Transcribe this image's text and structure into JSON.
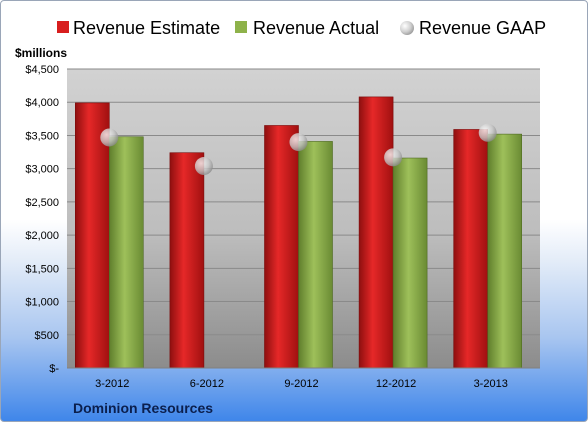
{
  "chart_data": {
    "type": "bar",
    "unit_label": "$millions",
    "company": "Dominion Resources",
    "categories": [
      "3-2012",
      "6-2012",
      "9-2012",
      "12-2012",
      "3-2013"
    ],
    "series": [
      {
        "name": "Revenue Estimate",
        "kind": "bar",
        "color": "#d81e1e",
        "values": [
          3990,
          3240,
          3650,
          4080,
          3590
        ]
      },
      {
        "name": "Revenue Actual",
        "kind": "bar",
        "color": "#8eb24a",
        "values": [
          3480,
          null,
          3410,
          3160,
          3520
        ]
      },
      {
        "name": "Revenue GAAP",
        "kind": "marker",
        "color": "#c8c8c8",
        "values": [
          3470,
          3040,
          3400,
          3170,
          3540
        ]
      }
    ],
    "ylim": [
      0,
      4500
    ],
    "yticks": [
      0,
      500,
      1000,
      1500,
      2000,
      2500,
      3000,
      3500,
      4000,
      4500
    ],
    "ytick_labels": [
      "$-",
      "$500",
      "$1,000",
      "$1,500",
      "$2,000",
      "$2,500",
      "$3,000",
      "$3,500",
      "$4,000",
      "$4,500"
    ],
    "grid": true,
    "legend_position": "top"
  }
}
